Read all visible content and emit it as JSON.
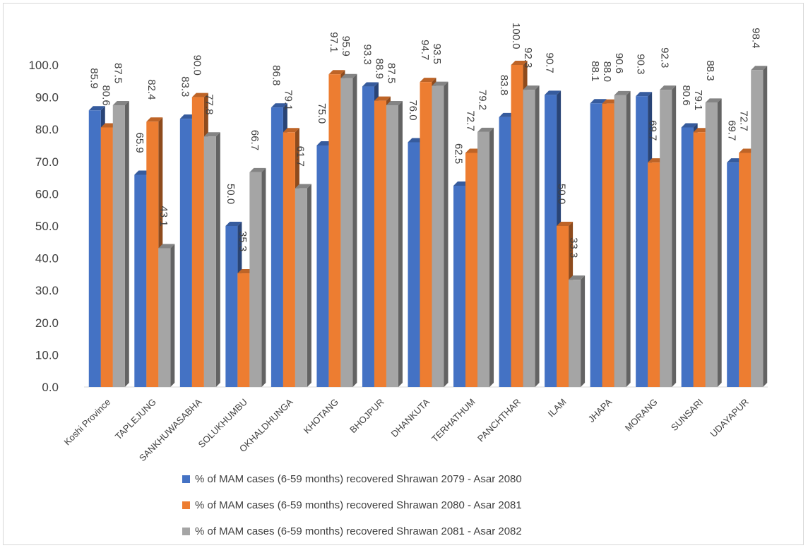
{
  "chart_data": {
    "type": "bar",
    "categories": [
      "Koshi Province",
      "TAPLEJUNG",
      "SANKHUWASABHA",
      "SOLUKHUMBU",
      "OKHALDHUNGA",
      "KHOTANG",
      "BHOJPUR",
      "DHANKUTA",
      "TERHATHUM",
      "PANCHTHAR",
      "ILAM",
      "JHAPA",
      "MORANG",
      "SUNSARI",
      "UDAYAPUR"
    ],
    "series": [
      {
        "name": "% of MAM cases (6-59 months) recovered Shrawan 2079 - Asar 2080",
        "color": "#4472c4",
        "values": [
          85.9,
          65.9,
          83.3,
          50.0,
          86.8,
          75.0,
          93.3,
          76.0,
          62.5,
          83.8,
          90.7,
          88.1,
          90.3,
          80.6,
          69.7
        ],
        "labels": [
          "85.9",
          "65.9",
          "83.3",
          "50.0",
          "86.8",
          "75.0",
          "93.3",
          "76.0",
          "62.5",
          "83.8",
          "90.7",
          "88.1",
          "90.3",
          "80.6",
          "69.7"
        ]
      },
      {
        "name": "% of MAM cases (6-59 months) recovered Shrawan 2080 - Asar 2081",
        "color": "#ed7d31",
        "values": [
          80.6,
          82.4,
          90.0,
          35.3,
          79.1,
          97.1,
          88.9,
          94.7,
          72.7,
          100.0,
          50.0,
          88.0,
          69.7,
          79.1,
          72.7
        ],
        "labels": [
          "80.6",
          "82.4",
          "90.0",
          "35.3",
          "79.1",
          "97.1",
          "88.9",
          "94.7",
          "72.7",
          "100.0",
          "50.0",
          "88.0",
          "69.7",
          "79.1",
          "72.7"
        ]
      },
      {
        "name": "% of MAM cases (6-59 months) recovered Shrawan 2081 - Asar 2082",
        "color": "#a5a5a5",
        "values": [
          87.5,
          43.1,
          77.8,
          66.7,
          61.7,
          95.9,
          87.5,
          93.5,
          79.2,
          92.3,
          33.3,
          90.6,
          92.3,
          88.3,
          98.4
        ],
        "labels": [
          "87.5",
          "43.1",
          "77.8",
          "66.7",
          "61.7",
          "95.9",
          "87.5",
          "93.5",
          "79.2",
          "92.3",
          "33.3",
          "90.6",
          "92.3",
          "88.3",
          "98.4"
        ]
      }
    ],
    "yticks": [
      "0.0",
      "10.0",
      "20.0",
      "30.0",
      "40.0",
      "50.0",
      "60.0",
      "70.0",
      "80.0",
      "90.0",
      "100.0"
    ],
    "ylim": [
      0,
      100
    ],
    "title": "",
    "xlabel": "",
    "ylabel": "",
    "grid": false,
    "legend_position": "bottom"
  }
}
